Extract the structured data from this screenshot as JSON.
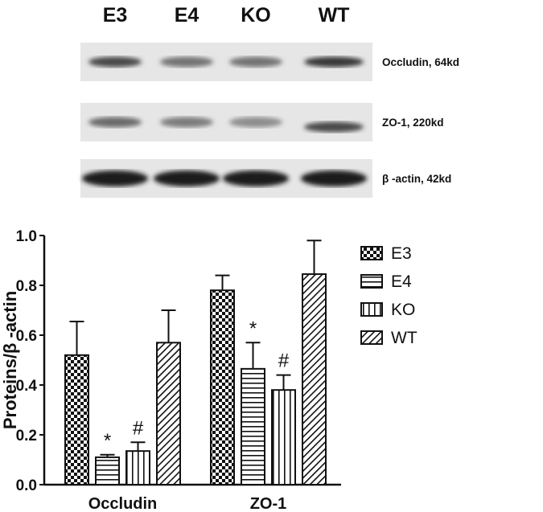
{
  "blot": {
    "lanes": [
      "E3",
      "E4",
      "KO",
      "WT"
    ],
    "rows": [
      {
        "label": "Occludin, 64kd",
        "band_intensity": [
          0.75,
          0.5,
          0.5,
          0.85
        ]
      },
      {
        "label": "ZO-1, 220kd",
        "band_intensity": [
          0.55,
          0.45,
          0.35,
          0.75
        ]
      },
      {
        "label": "β -actin, 42kd",
        "band_intensity": [
          1,
          1,
          1,
          1
        ]
      }
    ]
  },
  "chart_data": {
    "type": "bar",
    "categories": [
      "Occludin",
      "ZO-1"
    ],
    "ylabel": "Proteins/β -actin",
    "xlabel": "",
    "ylim": [
      0,
      1.0
    ],
    "yticks": [
      "0.0",
      "0.2",
      "0.4",
      "0.6",
      "0.8",
      "1.0"
    ],
    "legend_position": "right",
    "grid": false,
    "series": [
      {
        "name": "E3",
        "pattern": "checkerboard",
        "values": [
          0.52,
          0.78
        ],
        "error": [
          0.135,
          0.06
        ],
        "annotations": [
          "",
          ""
        ]
      },
      {
        "name": "E4",
        "pattern": "horizontal-lines",
        "values": [
          0.11,
          0.465
        ],
        "error": [
          0.01,
          0.105
        ],
        "annotations": [
          "*",
          "*"
        ]
      },
      {
        "name": "KO",
        "pattern": "vertical-lines",
        "values": [
          0.135,
          0.38
        ],
        "error": [
          0.035,
          0.06
        ],
        "annotations": [
          "#",
          "#"
        ]
      },
      {
        "name": "WT",
        "pattern": "diagonal-hatch",
        "values": [
          0.57,
          0.845
        ],
        "error": [
          0.13,
          0.135
        ],
        "annotations": [
          "",
          ""
        ]
      }
    ]
  }
}
